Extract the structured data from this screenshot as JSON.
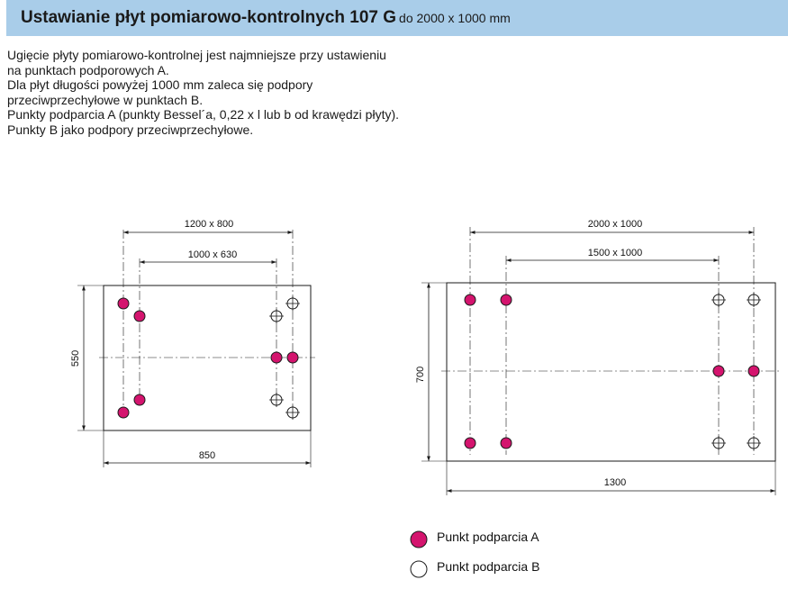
{
  "header": {
    "title": "Ustawianie płyt pomiarowo-kontrolnych 107 G",
    "subtitle": "do 2000 x 1000 mm"
  },
  "intro": [
    "Ugięcie płyty pomiarowo-kontrolnej jest najmniejsze przy ustawieniu na punktach podporowych A.",
    "Dla płyt długości powyżej 1000 mm zaleca się podpory przeciwprzechyłowe w punktach B.",
    "Punkty podparcia A (punkty Bessel´a, 0,22 x l lub b od krawędzi płyty). Punkty B jako podpory przeciwprzechyłowe."
  ],
  "colors": {
    "header_bg": "#a9cde9",
    "point_a": "#d4146e",
    "point_b": "#ffffff",
    "line": "#1a1a1a"
  },
  "plate_small": {
    "dim_top_outer": "1200 x 800",
    "dim_top_inner": "1000 x 630",
    "dim_left": "550",
    "dim_bottom": "850"
  },
  "plate_large": {
    "dim_top_outer": "2000 x 1000",
    "dim_top_inner": "1500 x 1000",
    "dim_left": "700",
    "dim_bottom": "1300"
  },
  "legend": {
    "a_label": "Punkt podparcia A",
    "b_label": "Punkt podparcia B"
  }
}
